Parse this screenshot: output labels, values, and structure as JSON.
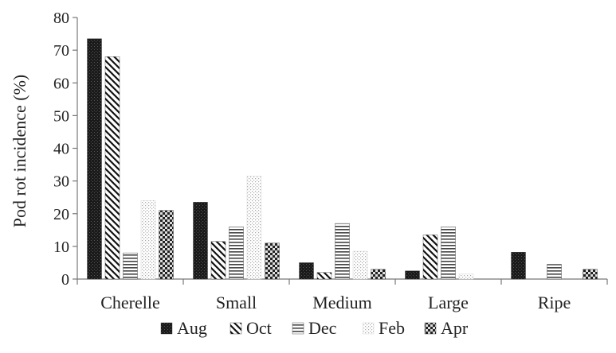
{
  "chart_data": {
    "type": "bar",
    "title": "",
    "xlabel": "",
    "ylabel": "Pod rot incidence (%)",
    "ylim": [
      0,
      80
    ],
    "yticks": [
      0,
      10,
      20,
      30,
      40,
      50,
      60,
      70,
      80
    ],
    "categories": [
      "Cherelle",
      "Small",
      "Medium",
      "Large",
      "Ripe"
    ],
    "series": [
      {
        "name": "Aug",
        "pattern": "solid-dark",
        "values": [
          73.5,
          23.5,
          5,
          2.5,
          8.2
        ]
      },
      {
        "name": "Oct",
        "pattern": "diagonal",
        "values": [
          68,
          11.5,
          2,
          13.5,
          0
        ]
      },
      {
        "name": "Dec",
        "pattern": "horizontal",
        "values": [
          8,
          16,
          17,
          16,
          4.5
        ]
      },
      {
        "name": "Feb",
        "pattern": "dotted",
        "values": [
          24,
          31.5,
          8.5,
          1.5,
          0
        ]
      },
      {
        "name": "Apr",
        "pattern": "checker",
        "values": [
          21,
          11,
          3,
          0,
          3
        ]
      }
    ],
    "grid": false,
    "legend": "bottom"
  }
}
